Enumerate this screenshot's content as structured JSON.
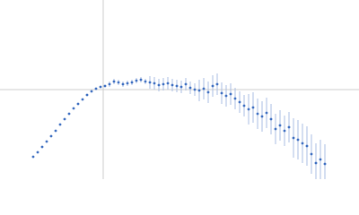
{
  "chart_data": {
    "type": "scatter",
    "x": [
      37,
      42,
      47,
      52,
      57,
      62,
      67,
      72,
      77,
      82,
      87,
      92,
      97,
      102,
      107,
      112,
      117,
      122,
      127,
      132,
      137,
      142,
      147,
      152,
      157,
      162,
      167,
      172,
      177,
      182,
      187,
      192,
      197,
      202,
      207,
      212,
      217,
      222,
      227,
      232,
      237,
      242,
      247,
      252,
      257,
      262,
      267,
      272,
      277,
      282,
      287,
      292,
      297,
      302,
      307,
      312,
      317,
      322,
      327,
      332,
      337,
      342,
      347,
      352,
      357,
      362
    ],
    "series": [
      {
        "color": "#3a6cc0",
        "error_color": "#a9bce3",
        "values": [
          25,
          30,
          36,
          42,
          48,
          54,
          61,
          67,
          73,
          79,
          84,
          89,
          94,
          98,
          101,
          103,
          104,
          106,
          109,
          108,
          106,
          107,
          108,
          110,
          111,
          109,
          108,
          107,
          105,
          106,
          107,
          105,
          104,
          103,
          106,
          102,
          100,
          99,
          101,
          97,
          104,
          106,
          96,
          93,
          95,
          90,
          86,
          82,
          78,
          80,
          73,
          70,
          74,
          67,
          56,
          60,
          54,
          58,
          46,
          44,
          40,
          37,
          28,
          18,
          22,
          17
        ],
        "errors": [
          1,
          1,
          1,
          1,
          1,
          1,
          1,
          1,
          1,
          1,
          1,
          1,
          1,
          1,
          1,
          1,
          1,
          3,
          3,
          3,
          3,
          3,
          3,
          3,
          3,
          3,
          7,
          7,
          7,
          7,
          7,
          7,
          7,
          7,
          7,
          7,
          7,
          12,
          12,
          12,
          12,
          12,
          12,
          12,
          12,
          12,
          12,
          12,
          17,
          17,
          17,
          17,
          17,
          17,
          17,
          17,
          17,
          17,
          22,
          22,
          22,
          22,
          22,
          22,
          22,
          22
        ]
      }
    ],
    "xlim": [
      0,
      400
    ],
    "ylim": [
      0,
      200
    ],
    "ref_lines": {
      "x": 115,
      "y": 100,
      "color": "#cccccc"
    }
  }
}
